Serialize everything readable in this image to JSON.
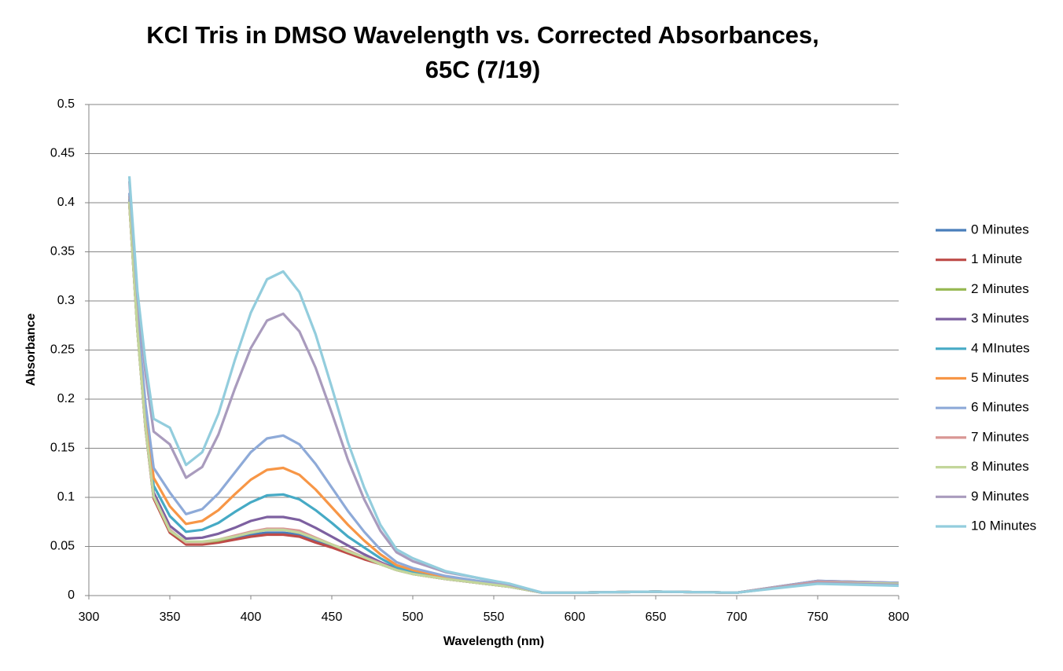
{
  "chart_data": {
    "type": "line",
    "title": [
      "KCl Tris in DMSO Wavelength vs. Corrected Absorbances,",
      "65C (7/19)"
    ],
    "x_label": "Wavelength (nm)",
    "y_label": "Absorbance",
    "x": [
      325,
      330,
      335,
      340,
      350,
      360,
      370,
      380,
      390,
      400,
      410,
      420,
      430,
      440,
      450,
      460,
      470,
      480,
      490,
      500,
      520,
      540,
      560,
      580,
      600,
      650,
      700,
      750,
      800
    ],
    "xlim": [
      300,
      800
    ],
    "xticks": [
      300,
      350,
      400,
      450,
      500,
      550,
      600,
      650,
      700,
      750,
      800
    ],
    "ylim": [
      0,
      0.5
    ],
    "yticks": [
      0,
      0.05,
      0.1,
      0.15,
      0.2,
      0.25,
      0.3,
      0.35,
      0.4,
      0.45,
      0.5
    ],
    "grid": true,
    "legend": "right",
    "series": [
      {
        "name": "0 Minutes",
        "color": "#4a7ebb",
        "values": [
          0.4,
          0.27,
          0.17,
          0.1,
          0.065,
          0.053,
          0.053,
          0.055,
          0.058,
          0.062,
          0.064,
          0.064,
          0.062,
          0.056,
          0.05,
          0.044,
          0.038,
          0.032,
          0.026,
          0.022,
          0.017,
          0.013,
          0.009,
          0.003,
          0.003,
          0.004,
          0.003,
          0.014,
          0.012
        ]
      },
      {
        "name": "1 Minute",
        "color": "#be4b48",
        "values": [
          0.4,
          0.27,
          0.17,
          0.099,
          0.064,
          0.052,
          0.052,
          0.054,
          0.057,
          0.06,
          0.062,
          0.062,
          0.06,
          0.054,
          0.049,
          0.043,
          0.037,
          0.032,
          0.026,
          0.022,
          0.017,
          0.013,
          0.009,
          0.003,
          0.003,
          0.004,
          0.003,
          0.015,
          0.013
        ]
      },
      {
        "name": "2 Minutes",
        "color": "#98b954",
        "values": [
          0.4,
          0.27,
          0.171,
          0.101,
          0.066,
          0.054,
          0.054,
          0.056,
          0.06,
          0.065,
          0.067,
          0.067,
          0.065,
          0.058,
          0.052,
          0.045,
          0.039,
          0.032,
          0.026,
          0.022,
          0.017,
          0.013,
          0.009,
          0.003,
          0.003,
          0.004,
          0.003,
          0.013,
          0.011
        ]
      },
      {
        "name": "3 Minutes",
        "color": "#7d60a0",
        "values": [
          0.402,
          0.272,
          0.174,
          0.105,
          0.071,
          0.058,
          0.059,
          0.063,
          0.069,
          0.076,
          0.08,
          0.08,
          0.077,
          0.069,
          0.06,
          0.051,
          0.042,
          0.034,
          0.027,
          0.023,
          0.017,
          0.013,
          0.009,
          0.003,
          0.003,
          0.004,
          0.003,
          0.014,
          0.012
        ]
      },
      {
        "name": "4 MInutes",
        "color": "#46aac5",
        "values": [
          0.404,
          0.276,
          0.18,
          0.112,
          0.081,
          0.065,
          0.067,
          0.074,
          0.085,
          0.095,
          0.102,
          0.103,
          0.098,
          0.087,
          0.074,
          0.06,
          0.049,
          0.038,
          0.029,
          0.024,
          0.018,
          0.014,
          0.009,
          0.003,
          0.003,
          0.004,
          0.003,
          0.014,
          0.012
        ]
      },
      {
        "name": "5 Minutes",
        "color": "#f79646",
        "values": [
          0.407,
          0.28,
          0.187,
          0.12,
          0.091,
          0.073,
          0.076,
          0.087,
          0.103,
          0.118,
          0.128,
          0.13,
          0.123,
          0.108,
          0.09,
          0.072,
          0.056,
          0.042,
          0.031,
          0.026,
          0.019,
          0.014,
          0.01,
          0.003,
          0.003,
          0.004,
          0.003,
          0.013,
          0.011
        ]
      },
      {
        "name": "6 Minutes",
        "color": "#8eaad8",
        "values": [
          0.41,
          0.285,
          0.195,
          0.13,
          0.105,
          0.083,
          0.088,
          0.104,
          0.125,
          0.146,
          0.16,
          0.163,
          0.154,
          0.134,
          0.11,
          0.086,
          0.065,
          0.047,
          0.034,
          0.028,
          0.02,
          0.015,
          0.01,
          0.003,
          0.003,
          0.004,
          0.003,
          0.015,
          0.013
        ]
      },
      {
        "name": "7 Minutes",
        "color": "#d99694",
        "values": [
          0.4,
          0.271,
          0.171,
          0.101,
          0.067,
          0.054,
          0.054,
          0.057,
          0.061,
          0.065,
          0.068,
          0.068,
          0.066,
          0.059,
          0.052,
          0.046,
          0.039,
          0.033,
          0.026,
          0.022,
          0.017,
          0.013,
          0.009,
          0.003,
          0.003,
          0.004,
          0.003,
          0.014,
          0.012
        ]
      },
      {
        "name": "8 Minutes",
        "color": "#c3d69b",
        "values": [
          0.401,
          0.27,
          0.171,
          0.101,
          0.066,
          0.055,
          0.055,
          0.057,
          0.06,
          0.064,
          0.067,
          0.067,
          0.064,
          0.058,
          0.052,
          0.045,
          0.039,
          0.032,
          0.026,
          0.022,
          0.017,
          0.013,
          0.009,
          0.003,
          0.003,
          0.004,
          0.003,
          0.013,
          0.012
        ]
      },
      {
        "name": "9 Minutes",
        "color": "#a99bbd",
        "values": [
          0.422,
          0.304,
          0.226,
          0.167,
          0.154,
          0.12,
          0.131,
          0.164,
          0.21,
          0.252,
          0.28,
          0.287,
          0.269,
          0.232,
          0.186,
          0.138,
          0.098,
          0.066,
          0.044,
          0.035,
          0.024,
          0.018,
          0.011,
          0.003,
          0.003,
          0.004,
          0.003,
          0.013,
          0.011
        ]
      },
      {
        "name": "10 Minutes",
        "color": "#93cddd",
        "values": [
          0.427,
          0.31,
          0.237,
          0.18,
          0.171,
          0.133,
          0.146,
          0.185,
          0.239,
          0.288,
          0.322,
          0.33,
          0.309,
          0.266,
          0.212,
          0.156,
          0.11,
          0.072,
          0.047,
          0.038,
          0.025,
          0.018,
          0.012,
          0.003,
          0.003,
          0.004,
          0.003,
          0.012,
          0.01
        ]
      }
    ]
  }
}
